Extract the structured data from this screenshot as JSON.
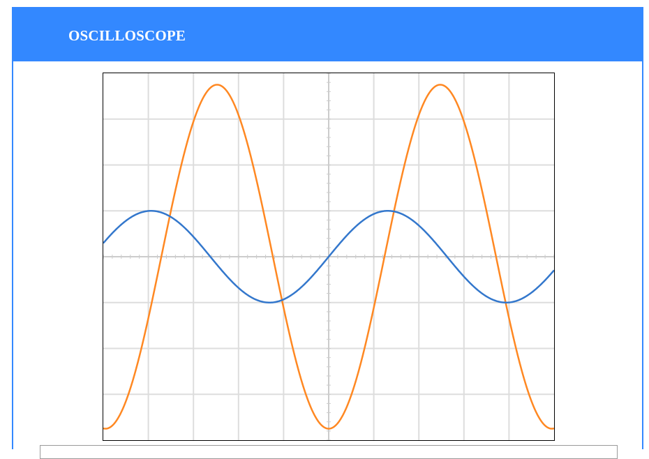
{
  "header": {
    "title": "OSCILLOSCOPE"
  },
  "colors": {
    "accent": "#3388ff",
    "grid": "#dddddd",
    "axis_ticks": "#cccccc"
  },
  "chart_data": {
    "type": "line",
    "title": "",
    "xlabel": "",
    "ylabel": "",
    "grid": true,
    "xlim": [
      -5,
      5
    ],
    "ylim": [
      -4,
      4
    ],
    "grid_divisions": {
      "x": 10,
      "y": 8
    },
    "series": [
      {
        "color": "#ff8822",
        "amplitude": 3.75,
        "period": 4.95,
        "phase_deg": -90
      },
      {
        "color": "#3377cc",
        "amplitude": 1.0,
        "period": 5.25,
        "phase_deg": 0
      }
    ]
  }
}
